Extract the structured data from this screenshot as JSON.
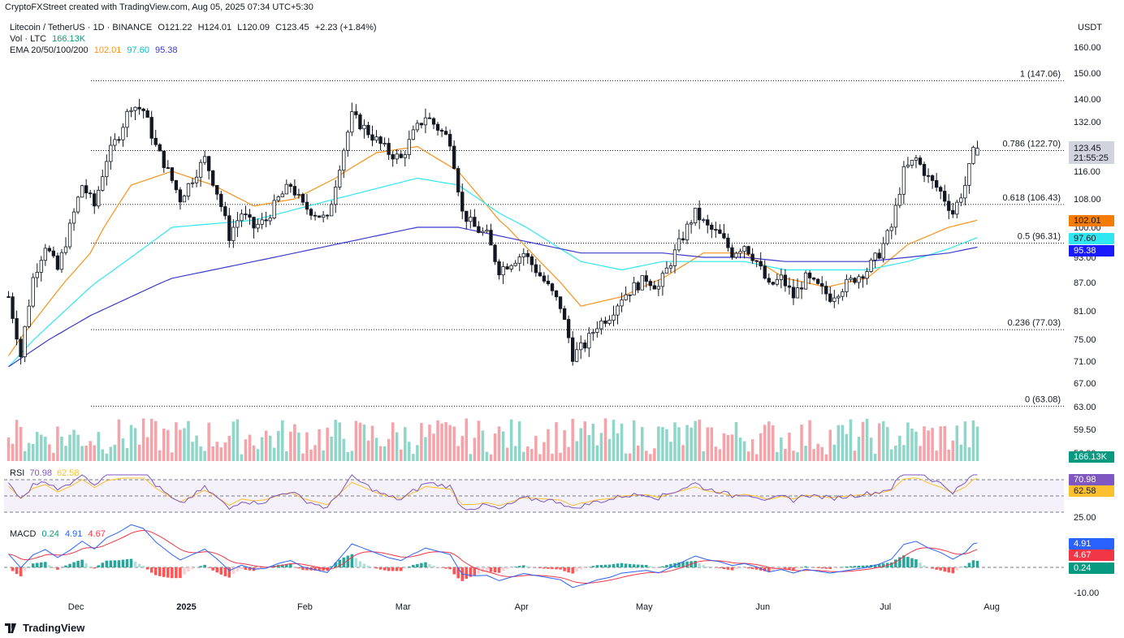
{
  "header": {
    "credit": "CryptoFXStreet created with TradingView.com, Aug 05, 2025 07:34 UTC+5:30"
  },
  "legend": {
    "symbol": "Litecoin / TetherUS · 1D · BINANCE",
    "open": "O121.22",
    "high": "H124.01",
    "low": "L120.09",
    "close": "C123.45",
    "change": "+2.23 (+1.84%)",
    "vol_label": "Vol · LTC",
    "vol_value": "166.13K",
    "ema_label": "EMA 20/50/100/200",
    "ema20": "102.01",
    "ema50": "97.60",
    "ema100": "95.38"
  },
  "currency": "USDT",
  "colors": {
    "up": "#089981",
    "down": "#f23645",
    "candle": "#131722",
    "ema_orange": "#f7931a",
    "ema_cyan": "#2ee7f0",
    "ema_blue": "#3a3acb",
    "rsi_line": "#7e57c2",
    "rsi_ma": "#fbc02d",
    "macd_line": "#2962ff",
    "signal_line": "#f23645"
  },
  "chart_data": {
    "type": "candlestick",
    "price_axis_ticks": [
      "160.00",
      "150.00",
      "140.00",
      "132.00",
      "116.00",
      "108.00",
      "100.00",
      "93.00",
      "87.00",
      "81.00",
      "75.00",
      "71.00",
      "67.00",
      "63.00",
      "59.50",
      "56.00"
    ],
    "time_axis_labels": [
      "Dec",
      "2025",
      "Feb",
      "Mar",
      "Apr",
      "May",
      "Jun",
      "Jul",
      "Aug"
    ],
    "fib_levels": [
      {
        "label": "1 (147.06)",
        "value": 147.06
      },
      {
        "label": "0.786 (122.70)",
        "value": 122.7
      },
      {
        "label": "0.618 (106.43)",
        "value": 106.43
      },
      {
        "label": "0.5 (96.31)",
        "value": 96.31
      },
      {
        "label": "0.236 (77.03)",
        "value": 77.03
      },
      {
        "label": "0 (63.08)",
        "value": 63.08
      }
    ],
    "last_price": {
      "value": "123.45",
      "countdown": "21:55:25"
    },
    "ema_badges": [
      {
        "name": "EMA 20",
        "value": "102.01"
      },
      {
        "name": "EMA 50",
        "value": "97.60"
      },
      {
        "name": "EMA 100",
        "value": "95.38"
      }
    ],
    "volume_badge": "166.13K",
    "price_path": [
      [
        0,
        84
      ],
      [
        3,
        72
      ],
      [
        6,
        88
      ],
      [
        9,
        96
      ],
      [
        12,
        90
      ],
      [
        15,
        100
      ],
      [
        18,
        112
      ],
      [
        21,
        106
      ],
      [
        24,
        120
      ],
      [
        27,
        128
      ],
      [
        30,
        138
      ],
      [
        33,
        136
      ],
      [
        36,
        124
      ],
      [
        39,
        116
      ],
      [
        42,
        108
      ],
      [
        45,
        114
      ],
      [
        48,
        120
      ],
      [
        51,
        110
      ],
      [
        54,
        98
      ],
      [
        57,
        104
      ],
      [
        60,
        100
      ],
      [
        63,
        102
      ],
      [
        66,
        108
      ],
      [
        69,
        112
      ],
      [
        72,
        106
      ],
      [
        75,
        104
      ],
      [
        78,
        102
      ],
      [
        81,
        118
      ],
      [
        84,
        134
      ],
      [
        87,
        130
      ],
      [
        90,
        126
      ],
      [
        93,
        122
      ],
      [
        96,
        120
      ],
      [
        99,
        128
      ],
      [
        102,
        134
      ],
      [
        105,
        130
      ],
      [
        108,
        126
      ],
      [
        111,
        104
      ],
      [
        114,
        100
      ],
      [
        117,
        98
      ],
      [
        120,
        90
      ],
      [
        123,
        92
      ],
      [
        126,
        94
      ],
      [
        129,
        90
      ],
      [
        132,
        86
      ],
      [
        135,
        82
      ],
      [
        138,
        72
      ],
      [
        141,
        74
      ],
      [
        144,
        78
      ],
      [
        147,
        80
      ],
      [
        150,
        84
      ],
      [
        153,
        86
      ],
      [
        156,
        88
      ],
      [
        159,
        86
      ],
      [
        162,
        92
      ],
      [
        165,
        98
      ],
      [
        168,
        104
      ],
      [
        171,
        100
      ],
      [
        174,
        98
      ],
      [
        177,
        94
      ],
      [
        180,
        96
      ],
      [
        183,
        92
      ],
      [
        186,
        86
      ],
      [
        189,
        88
      ],
      [
        192,
        84
      ],
      [
        195,
        88
      ],
      [
        198,
        86
      ],
      [
        201,
        84
      ],
      [
        204,
        86
      ],
      [
        207,
        88
      ],
      [
        210,
        90
      ],
      [
        213,
        94
      ],
      [
        216,
        100
      ],
      [
        219,
        116
      ],
      [
        222,
        120
      ],
      [
        225,
        114
      ],
      [
        228,
        110
      ],
      [
        231,
        104
      ],
      [
        234,
        112
      ],
      [
        236,
        122
      ],
      [
        237,
        123.45
      ]
    ],
    "ema20_path": [
      [
        0,
        72
      ],
      [
        20,
        94
      ],
      [
        30,
        112
      ],
      [
        40,
        116
      ],
      [
        50,
        112
      ],
      [
        60,
        106
      ],
      [
        70,
        108
      ],
      [
        80,
        114
      ],
      [
        90,
        122
      ],
      [
        100,
        124
      ],
      [
        110,
        116
      ],
      [
        120,
        102
      ],
      [
        130,
        92
      ],
      [
        140,
        82
      ],
      [
        150,
        84
      ],
      [
        160,
        88
      ],
      [
        170,
        94
      ],
      [
        180,
        94
      ],
      [
        190,
        88
      ],
      [
        200,
        86
      ],
      [
        210,
        88
      ],
      [
        220,
        96
      ],
      [
        230,
        100
      ],
      [
        237,
        102
      ]
    ],
    "ema50_path": [
      [
        0,
        70
      ],
      [
        20,
        86
      ],
      [
        40,
        100
      ],
      [
        60,
        102
      ],
      [
        80,
        108
      ],
      [
        100,
        114
      ],
      [
        110,
        112
      ],
      [
        120,
        104
      ],
      [
        130,
        98
      ],
      [
        140,
        92
      ],
      [
        150,
        90
      ],
      [
        160,
        92
      ],
      [
        170,
        92
      ],
      [
        180,
        92
      ],
      [
        190,
        90
      ],
      [
        200,
        90
      ],
      [
        210,
        90
      ],
      [
        220,
        92
      ],
      [
        230,
        95
      ],
      [
        237,
        97.6
      ]
    ],
    "ema100_path": [
      [
        0,
        70
      ],
      [
        20,
        80
      ],
      [
        40,
        88
      ],
      [
        60,
        92
      ],
      [
        80,
        96
      ],
      [
        100,
        100
      ],
      [
        110,
        100
      ],
      [
        120,
        98
      ],
      [
        130,
        96
      ],
      [
        140,
        94
      ],
      [
        150,
        94
      ],
      [
        160,
        94
      ],
      [
        170,
        93
      ],
      [
        180,
        93
      ],
      [
        190,
        92
      ],
      [
        200,
        92
      ],
      [
        210,
        92
      ],
      [
        220,
        93
      ],
      [
        230,
        94
      ],
      [
        237,
        95.38
      ]
    ],
    "volume_label": "Vol · LTC",
    "rsi": {
      "label": "RSI",
      "value": "70.98",
      "ma": "62.58",
      "axis_ticks": [
        "25.00"
      ],
      "badges": [
        "70.98",
        "62.58"
      ]
    },
    "macd": {
      "label": "MACD",
      "hist": "0.24",
      "macd": "4.91",
      "signal": "4.67",
      "axis_ticks": [
        "-10.00"
      ],
      "badges": [
        "4.91",
        "4.67",
        "0.24"
      ]
    }
  },
  "footer": {
    "brand": "TradingView"
  }
}
